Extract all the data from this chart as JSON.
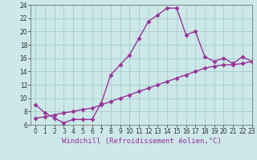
{
  "xlabel": "Windchill (Refroidissement éolien,°C)",
  "background_color": "#cce8e8",
  "grid_color": "#aacccc",
  "line_color": "#993399",
  "x_upper": [
    0,
    1,
    2,
    3,
    4,
    5,
    6,
    7,
    8,
    9,
    10,
    11,
    12,
    13,
    14,
    15,
    16,
    17,
    18,
    19,
    20,
    21,
    22,
    23
  ],
  "y_upper": [
    9.0,
    7.8,
    7.0,
    6.3,
    6.8,
    6.8,
    6.8,
    9.3,
    13.5,
    15.0,
    16.5,
    19.0,
    21.5,
    22.5,
    23.5,
    23.5,
    19.5,
    20.0,
    16.2,
    15.5,
    16.0,
    15.2,
    16.2,
    15.5
  ],
  "x_lower": [
    0,
    1,
    2,
    3,
    4,
    5,
    6,
    7,
    8,
    9,
    10,
    11,
    12,
    13,
    14,
    15,
    16,
    17,
    18,
    19,
    20,
    21,
    22,
    23
  ],
  "y_lower": [
    7.0,
    7.2,
    7.5,
    7.8,
    8.0,
    8.3,
    8.5,
    9.0,
    9.5,
    10.0,
    10.5,
    11.0,
    11.5,
    12.0,
    12.5,
    13.0,
    13.5,
    14.0,
    14.5,
    14.8,
    15.0,
    15.0,
    15.2,
    15.5
  ],
  "ylim": [
    6,
    24
  ],
  "xlim": [
    -0.5,
    23
  ],
  "yticks": [
    6,
    8,
    10,
    12,
    14,
    16,
    18,
    20,
    22,
    24
  ],
  "xticks": [
    0,
    1,
    2,
    3,
    4,
    5,
    6,
    7,
    8,
    9,
    10,
    11,
    12,
    13,
    14,
    15,
    16,
    17,
    18,
    19,
    20,
    21,
    22,
    23
  ],
  "marker": "D",
  "marker_size": 2.5,
  "line_width": 1.0,
  "xlabel_fontsize": 6.5,
  "tick_fontsize": 5.5
}
